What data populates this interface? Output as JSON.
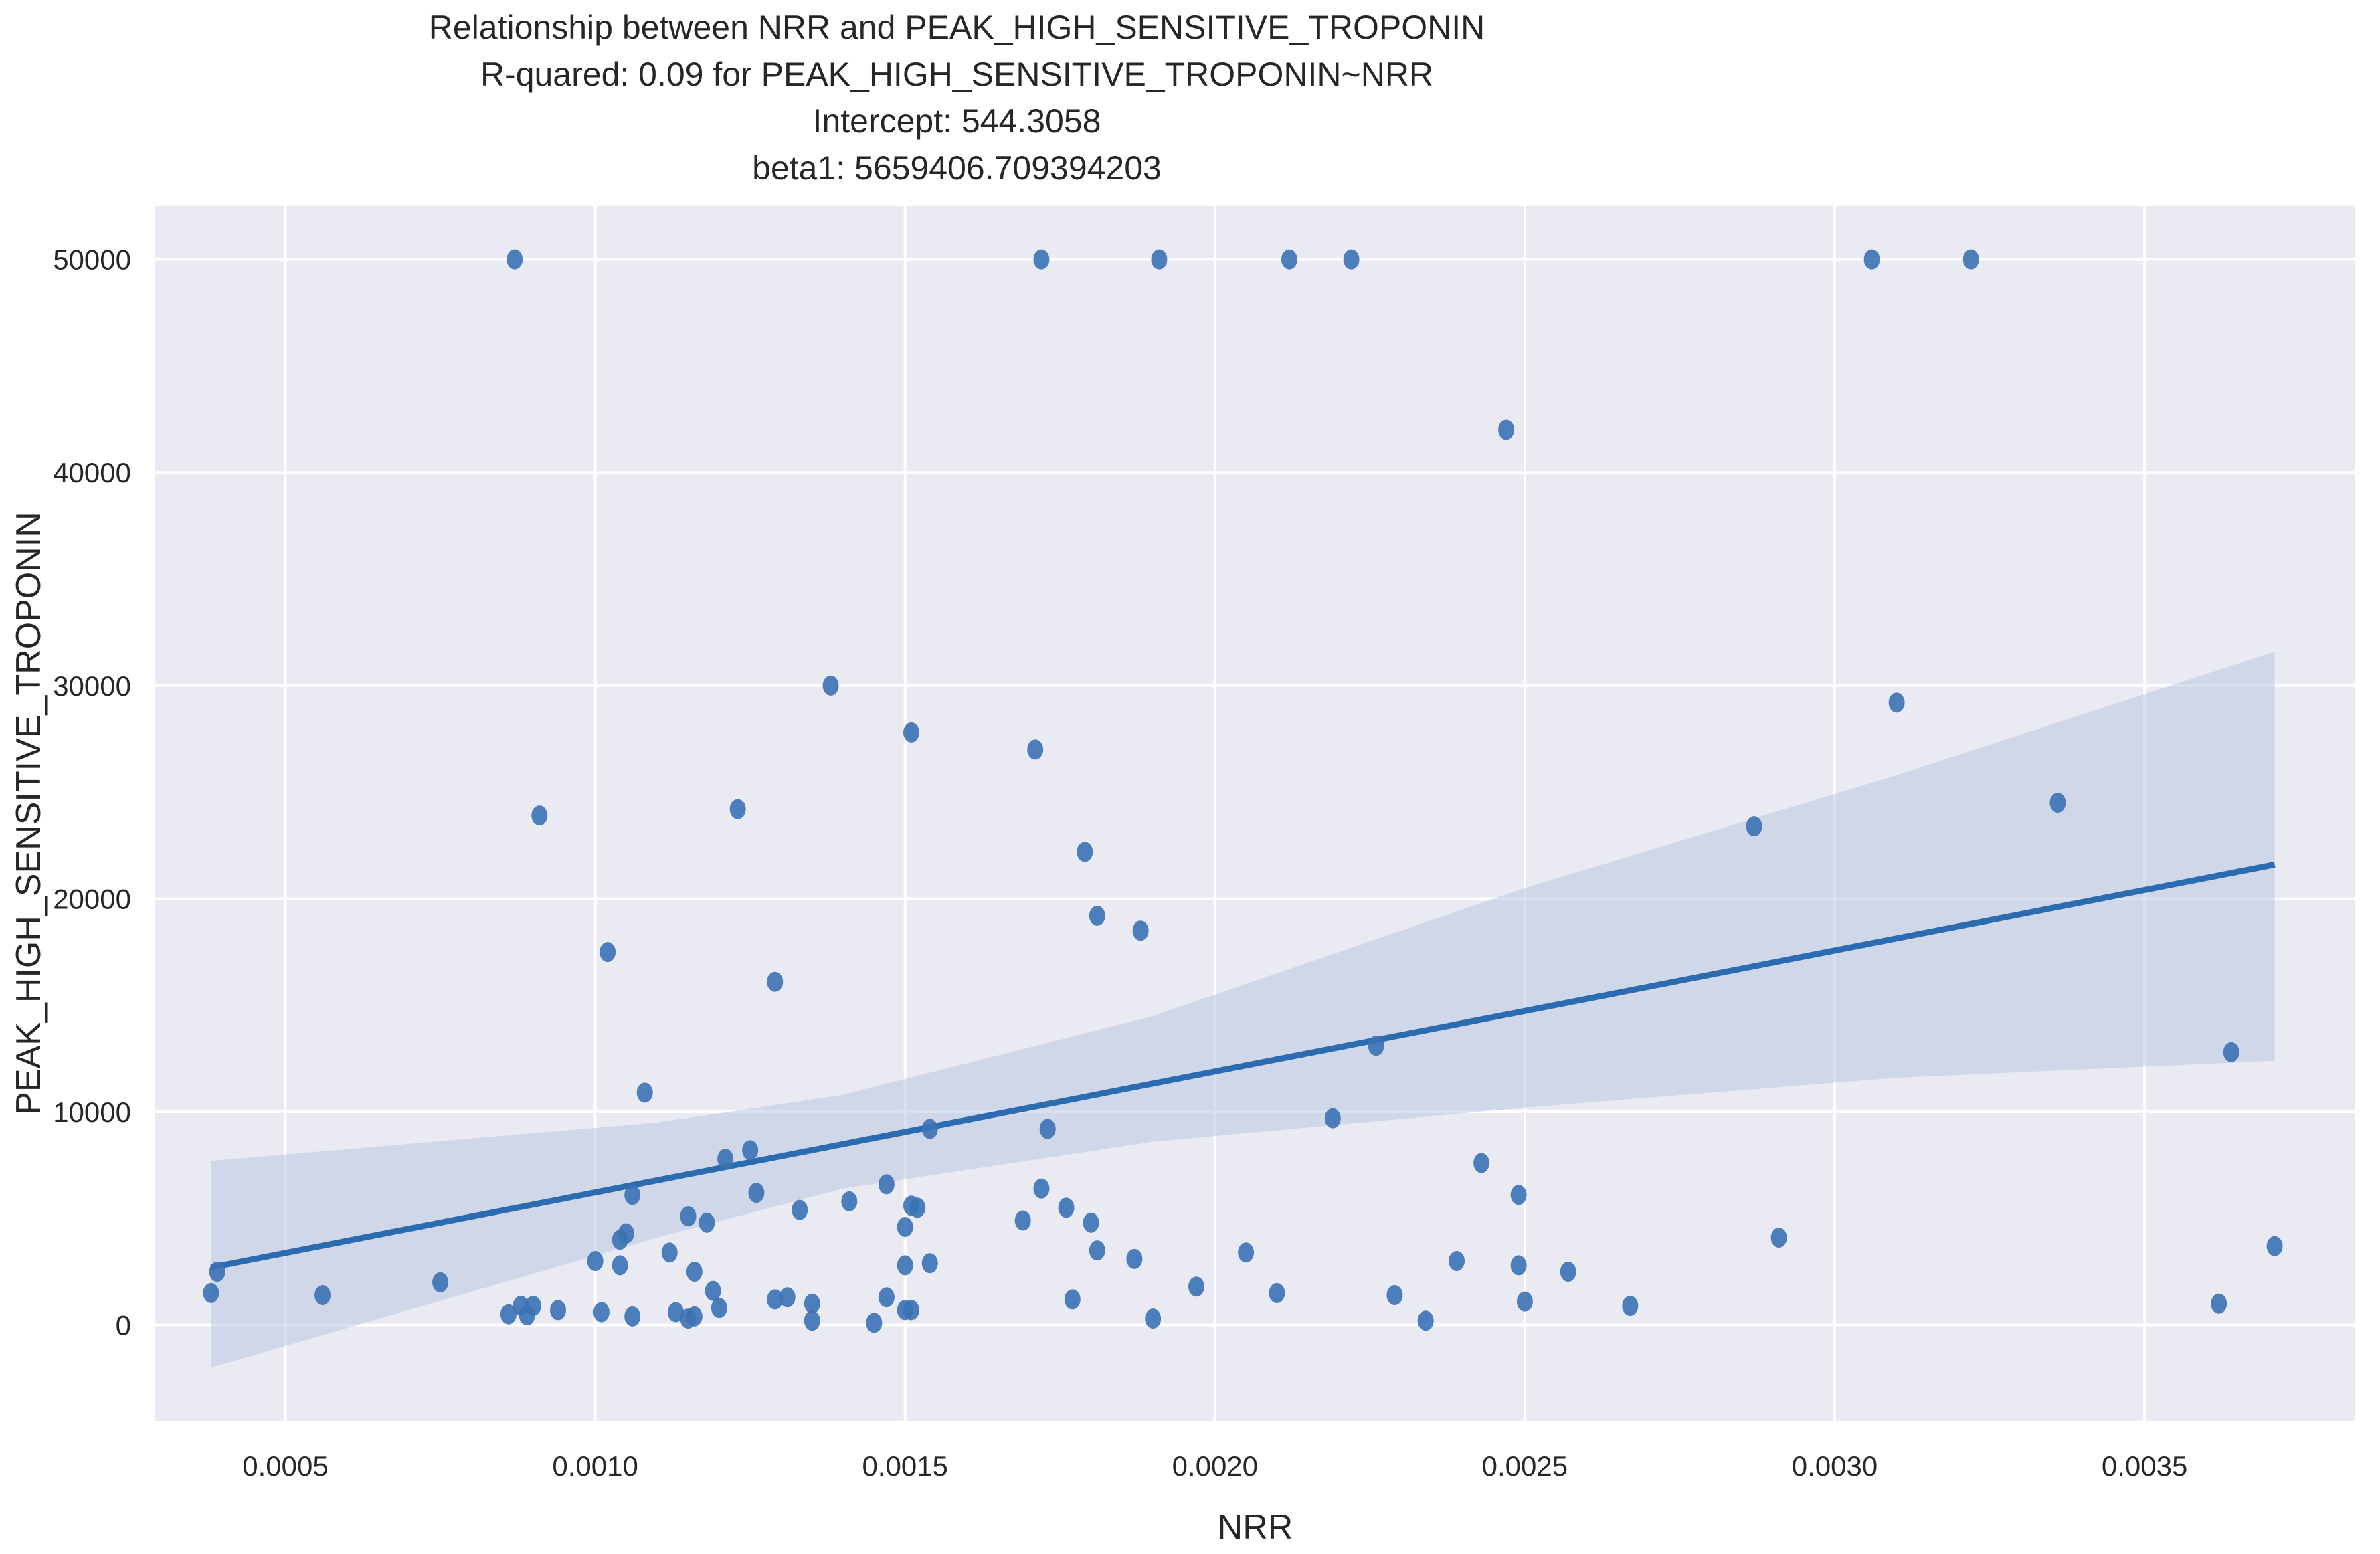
{
  "chart_data": {
    "type": "scatter",
    "title_lines": [
      "Relationship between NRR and PEAK_HIGH_SENSITIVE_TROPONIN",
      "R-quared: 0.09 for PEAK_HIGH_SENSITIVE_TROPONIN~NRR",
      "Intercept: 544.3058",
      "beta1: 5659406.709394203"
    ],
    "xlabel": "NRR",
    "ylabel": "PEAK_HIGH_SENSITIVE_TROPONIN",
    "xlim": [
      0.00029,
      0.00384
    ],
    "ylim": [
      -4500,
      52500
    ],
    "x_ticks": [
      0.0005,
      0.001,
      0.0015,
      0.002,
      0.0025,
      0.003,
      0.0035
    ],
    "x_tick_labels": [
      "0.0005",
      "0.0010",
      "0.0015",
      "0.0020",
      "0.0025",
      "0.0030",
      "0.0035"
    ],
    "y_ticks": [
      0,
      10000,
      20000,
      30000,
      40000,
      50000
    ],
    "y_tick_labels": [
      "0",
      "10000",
      "20000",
      "30000",
      "40000",
      "50000"
    ],
    "grid": true,
    "background_color": "#eaeaf2",
    "grid_color": "#ffffff",
    "point_color": "#3b72b5",
    "line_color": "#2b6cb0",
    "ci_color": "#b9c7e2",
    "points": [
      [
        0.00087,
        50000
      ],
      [
        0.00172,
        50000
      ],
      [
        0.00191,
        50000
      ],
      [
        0.00212,
        50000
      ],
      [
        0.00222,
        50000
      ],
      [
        0.00306,
        50000
      ],
      [
        0.00322,
        50000
      ],
      [
        0.00247,
        42000
      ],
      [
        0.00138,
        30000
      ],
      [
        0.0031,
        29200
      ],
      [
        0.00151,
        27800
      ],
      [
        0.00171,
        27000
      ],
      [
        0.00336,
        24500
      ],
      [
        0.00123,
        24200
      ],
      [
        0.00091,
        23900
      ],
      [
        0.00287,
        23400
      ],
      [
        0.00179,
        22200
      ],
      [
        0.00181,
        19200
      ],
      [
        0.00188,
        18500
      ],
      [
        0.00102,
        17500
      ],
      [
        0.00129,
        16100
      ],
      [
        0.00226,
        13100
      ],
      [
        0.00364,
        12800
      ],
      [
        0.00108,
        10900
      ],
      [
        0.00219,
        9700
      ],
      [
        0.00173,
        9200
      ],
      [
        0.00154,
        9200
      ],
      [
        0.00125,
        8200
      ],
      [
        0.00121,
        7800
      ],
      [
        0.00243,
        7600
      ],
      [
        0.00147,
        6600
      ],
      [
        0.00172,
        6400
      ],
      [
        0.00249,
        6100
      ],
      [
        0.00106,
        6100
      ],
      [
        0.00126,
        6200
      ],
      [
        0.00141,
        5800
      ],
      [
        0.00151,
        5600
      ],
      [
        0.00152,
        5500
      ],
      [
        0.00176,
        5500
      ],
      [
        0.00133,
        5400
      ],
      [
        0.00115,
        5100
      ],
      [
        0.00169,
        4900
      ],
      [
        0.00118,
        4800
      ],
      [
        0.0018,
        4800
      ],
      [
        0.0015,
        4600
      ],
      [
        0.00105,
        4300
      ],
      [
        0.00104,
        4000
      ],
      [
        0.00291,
        4100
      ],
      [
        0.00371,
        3700
      ],
      [
        0.00181,
        3500
      ],
      [
        0.00112,
        3400
      ],
      [
        0.00205,
        3400
      ],
      [
        0.00187,
        3100
      ],
      [
        0.001,
        3000
      ],
      [
        0.00239,
        3000
      ],
      [
        0.0015,
        2800
      ],
      [
        0.00154,
        2900
      ],
      [
        0.00249,
        2800
      ],
      [
        0.00104,
        2800
      ],
      [
        0.00116,
        2500
      ],
      [
        0.00257,
        2500
      ],
      [
        0.00039,
        2500
      ],
      [
        0.00075,
        2000
      ],
      [
        0.00197,
        1800
      ],
      [
        0.00119,
        1600
      ],
      [
        0.0021,
        1500
      ],
      [
        0.00038,
        1500
      ],
      [
        0.00056,
        1400
      ],
      [
        0.00147,
        1300
      ],
      [
        0.00229,
        1400
      ],
      [
        0.00131,
        1300
      ],
      [
        0.00129,
        1200
      ],
      [
        0.00177,
        1200
      ],
      [
        0.0025,
        1100
      ],
      [
        0.00135,
        1000
      ],
      [
        0.00362,
        1000
      ],
      [
        0.00088,
        900
      ],
      [
        0.00267,
        900
      ],
      [
        0.0009,
        900
      ],
      [
        0.0012,
        800
      ],
      [
        0.0015,
        700
      ],
      [
        0.00151,
        700
      ],
      [
        0.00094,
        700
      ],
      [
        0.00101,
        600
      ],
      [
        0.00113,
        600
      ],
      [
        0.00086,
        500
      ],
      [
        0.00089,
        450
      ],
      [
        0.00106,
        400
      ],
      [
        0.00116,
        400
      ],
      [
        0.00115,
        300
      ],
      [
        0.0019,
        300
      ],
      [
        0.00135,
        200
      ],
      [
        0.00234,
        200
      ],
      [
        0.00145,
        100
      ]
    ],
    "regression": {
      "x_start": 0.00038,
      "x_end": 0.00371,
      "y_start": 2700,
      "y_end": 21600,
      "ci_upper": [
        [
          0.00038,
          7700
        ],
        [
          0.0011,
          9500
        ],
        [
          0.0014,
          10800
        ],
        [
          0.0019,
          14500
        ],
        [
          0.0025,
          20500
        ],
        [
          0.0031,
          25800
        ],
        [
          0.00371,
          31600
        ]
      ],
      "ci_lower": [
        [
          0.00371,
          12400
        ],
        [
          0.0031,
          11600
        ],
        [
          0.0025,
          10200
        ],
        [
          0.0019,
          8600
        ],
        [
          0.0014,
          6400
        ],
        [
          0.0011,
          4100
        ],
        [
          0.00038,
          -2000
        ]
      ]
    }
  }
}
